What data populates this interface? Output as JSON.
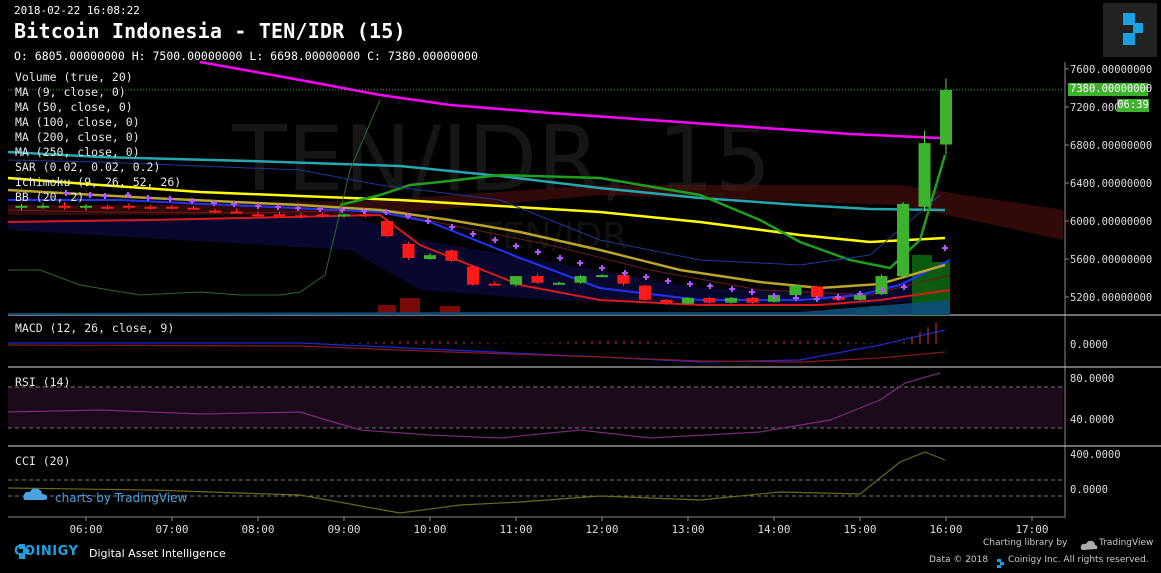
{
  "header": {
    "timestamp": "2018-02-22 16:08:22",
    "title": "Bitcoin Indonesia - TEN/IDR (15)",
    "ohlc": "O: 6805.00000000 H: 7500.00000000 L: 6698.00000000 C: 7380.00000000"
  },
  "watermark": {
    "symbol": "TEN/IDR, 15",
    "pair": "TEN/IDR"
  },
  "indicators": [
    "Volume (true, 20)",
    "MA (9, close, 0)",
    "MA (50, close, 0)",
    "MA (100, close, 0)",
    "MA (200, close, 0)",
    "MA (250, close, 0)",
    "SAR (0.02, 0.02, 0.2)",
    "Ichimoku (9, 26, 52, 26)",
    "BB (20, 2)"
  ],
  "panes": {
    "macd": "MACD (12, 26, close, 9)",
    "rsi": "RSI (14)",
    "cci": "CCI (20)"
  },
  "price_axis": {
    "ticks": [
      "7600.00000000",
      "7200.000",
      "6800.00000000",
      "6400.00000000",
      "6000.00000000",
      "5600.00000000",
      "5200.00000000"
    ],
    "last_price": "7380.00000000",
    "countdown": "06:39"
  },
  "macd_axis": [
    "0.0000"
  ],
  "rsi_axis": [
    "80.0000",
    "40.0000"
  ],
  "cci_axis": [
    "400.0000",
    "0.0000"
  ],
  "time_axis": [
    "06:00",
    "07:00",
    "08:00",
    "09:00",
    "10:00",
    "11:00",
    "12:00",
    "13:00",
    "14:00",
    "15:00",
    "16:00",
    "17:00"
  ],
  "footer": {
    "brand": "COINIGY",
    "tagline": "Digital Asset Intelligence",
    "charts_by": "charts by TradingView",
    "charting_library": "Charting library by",
    "tv_name": "TradingView",
    "data_credit": "Data © 2018",
    "coinigy_credit": "Coinigy Inc. All rights reserved."
  },
  "colors": {
    "up": "#3db32d",
    "down": "#ff1a1a",
    "ma9": "#1f9f1f",
    "ma50": "#b9a52a",
    "ma100": "#ffff00",
    "ma200": "#26a7b0",
    "ma250": "#ff00ff",
    "sar": "#b455ff",
    "blue": "#2233ff",
    "redline": "#d61a1a",
    "cloud": "#5a1010"
  },
  "chart_data": {
    "type": "candlestick",
    "interval": "15",
    "ylim": [
      5000,
      7700
    ],
    "candles": [
      {
        "t": "05:15",
        "o": 6140,
        "h": 6180,
        "l": 6110,
        "c": 6160
      },
      {
        "t": "05:30",
        "o": 6150,
        "h": 6190,
        "l": 6130,
        "c": 6160
      },
      {
        "t": "05:45",
        "o": 6160,
        "h": 6200,
        "l": 6120,
        "c": 6150
      },
      {
        "t": "06:00",
        "o": 6140,
        "h": 6180,
        "l": 6110,
        "c": 6160
      },
      {
        "t": "06:15",
        "o": 6150,
        "h": 6170,
        "l": 6120,
        "c": 6140
      },
      {
        "t": "06:30",
        "o": 6160,
        "h": 6190,
        "l": 6120,
        "c": 6150
      },
      {
        "t": "06:45",
        "o": 6150,
        "h": 6170,
        "l": 6120,
        "c": 6130
      },
      {
        "t": "07:00",
        "o": 6150,
        "h": 6170,
        "l": 6120,
        "c": 6130
      },
      {
        "t": "07:15",
        "o": 6140,
        "h": 6160,
        "l": 6120,
        "c": 6130
      },
      {
        "t": "07:30",
        "o": 6110,
        "h": 6130,
        "l": 6080,
        "c": 6090
      },
      {
        "t": "07:45",
        "o": 6100,
        "h": 6130,
        "l": 6080,
        "c": 6090
      },
      {
        "t": "08:00",
        "o": 6070,
        "h": 6100,
        "l": 6050,
        "c": 6060
      },
      {
        "t": "08:15",
        "o": 6070,
        "h": 6100,
        "l": 6050,
        "c": 6060
      },
      {
        "t": "08:30",
        "o": 6060,
        "h": 6090,
        "l": 6030,
        "c": 6040
      },
      {
        "t": "08:45",
        "o": 6070,
        "h": 6090,
        "l": 6040,
        "c": 6050
      },
      {
        "t": "09:00",
        "o": 6050,
        "h": 6080,
        "l": 6040,
        "c": 6070
      },
      {
        "t": "09:15",
        "o": 6070,
        "h": 6100,
        "l": 6040,
        "c": 6050
      },
      {
        "t": "09:30",
        "o": 6000,
        "h": 6020,
        "l": 5830,
        "c": 5840
      },
      {
        "t": "09:45",
        "o": 5760,
        "h": 5780,
        "l": 5590,
        "c": 5610
      },
      {
        "t": "10:00",
        "o": 5600,
        "h": 5660,
        "l": 5590,
        "c": 5640
      },
      {
        "t": "10:15",
        "o": 5690,
        "h": 5700,
        "l": 5570,
        "c": 5580
      },
      {
        "t": "10:30",
        "o": 5520,
        "h": 5530,
        "l": 5320,
        "c": 5330
      },
      {
        "t": "10:45",
        "o": 5340,
        "h": 5360,
        "l": 5320,
        "c": 5330
      },
      {
        "t": "11:00",
        "o": 5330,
        "h": 5420,
        "l": 5310,
        "c": 5420
      },
      {
        "t": "11:15",
        "o": 5420,
        "h": 5440,
        "l": 5340,
        "c": 5350
      },
      {
        "t": "11:30",
        "o": 5350,
        "h": 5360,
        "l": 5340,
        "c": 5350
      },
      {
        "t": "11:45",
        "o": 5350,
        "h": 5430,
        "l": 5340,
        "c": 5420
      },
      {
        "t": "12:00",
        "o": 5430,
        "h": 5440,
        "l": 5420,
        "c": 5430
      },
      {
        "t": "12:15",
        "o": 5430,
        "h": 5440,
        "l": 5320,
        "c": 5340
      },
      {
        "t": "12:30",
        "o": 5320,
        "h": 5330,
        "l": 5160,
        "c": 5170
      },
      {
        "t": "12:45",
        "o": 5170,
        "h": 5180,
        "l": 5120,
        "c": 5130
      },
      {
        "t": "13:00",
        "o": 5130,
        "h": 5200,
        "l": 5120,
        "c": 5190
      },
      {
        "t": "13:15",
        "o": 5190,
        "h": 5200,
        "l": 5130,
        "c": 5140
      },
      {
        "t": "13:30",
        "o": 5140,
        "h": 5200,
        "l": 5130,
        "c": 5190
      },
      {
        "t": "13:45",
        "o": 5190,
        "h": 5200,
        "l": 5130,
        "c": 5140
      },
      {
        "t": "14:00",
        "o": 5150,
        "h": 5230,
        "l": 5140,
        "c": 5220
      },
      {
        "t": "14:15",
        "o": 5220,
        "h": 5330,
        "l": 5210,
        "c": 5320
      },
      {
        "t": "14:30",
        "o": 5310,
        "h": 5320,
        "l": 5190,
        "c": 5200
      },
      {
        "t": "14:45",
        "o": 5200,
        "h": 5210,
        "l": 5160,
        "c": 5170
      },
      {
        "t": "15:00",
        "o": 5170,
        "h": 5230,
        "l": 5160,
        "c": 5220
      },
      {
        "t": "15:15",
        "o": 5230,
        "h": 5440,
        "l": 5220,
        "c": 5420
      },
      {
        "t": "15:30",
        "o": 5420,
        "h": 6200,
        "l": 5400,
        "c": 6180
      },
      {
        "t": "15:45",
        "o": 6150,
        "h": 6950,
        "l": 6100,
        "c": 6820
      },
      {
        "t": "16:00",
        "o": 6805,
        "h": 7500,
        "l": 6698,
        "c": 7380
      }
    ]
  }
}
